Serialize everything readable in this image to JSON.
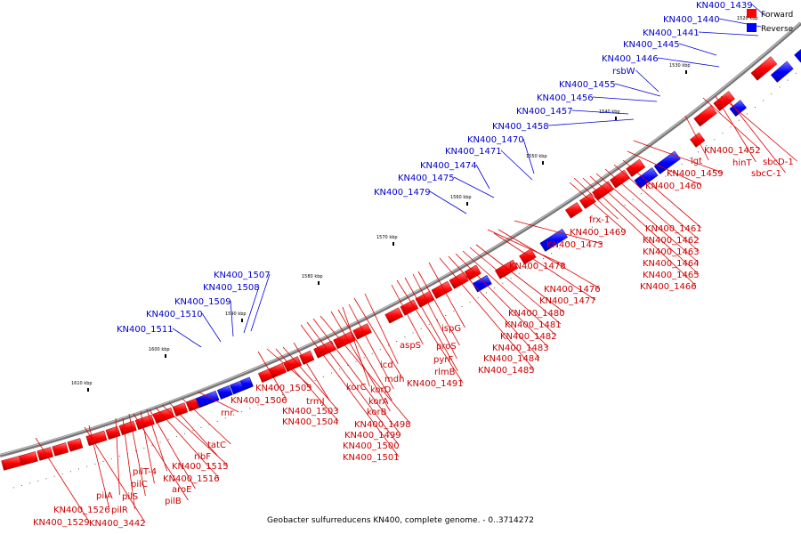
{
  "caption": "Geobacter sulfurreducens KN400, complete genome. - 0..3714272",
  "legend": {
    "forward": {
      "label": "Forward",
      "color": "#ff0000"
    },
    "reverse": {
      "label": "Reverse",
      "color": "#0000ff"
    }
  },
  "kbp_ticks": [
    "1520 kbp",
    "1530 kbp",
    "1540 kbp",
    "1550 kbp",
    "1560 kbp",
    "1570 kbp",
    "1580 kbp",
    "1590 kbp",
    "1600 kbp",
    "1610 kbp"
  ],
  "reverse_labels": [
    "KN400_1439",
    "KN400_1440",
    "KN400_1441",
    "KN400_1445",
    "KN400_1446",
    "rsbW",
    "KN400_1455",
    "KN400_1456",
    "KN400_1457",
    "KN400_1458",
    "KN400_1470",
    "KN400_1471",
    "KN400_1474",
    "KN400_1475",
    "KN400_1479",
    "KN400_1507",
    "KN400_1508",
    "KN400_1509",
    "KN400_1510",
    "KN400_1511"
  ],
  "forward_labels": [
    "lgt",
    "KN400_1452",
    "hinT",
    "sbcD-1",
    "sbcC-1",
    "KN400_1459",
    "KN400_1460",
    "frx-1",
    "KN400_1469",
    "KN400_1461",
    "KN400_1462",
    "KN400_1463",
    "KN400_1464",
    "KN400_1465",
    "KN400_1466",
    "KN400_1473",
    "KN400_1478",
    "KN400_1476",
    "KN400_1477",
    "KN400_1480",
    "KN400_1481",
    "KN400_1482",
    "KN400_1483",
    "KN400_1484",
    "KN400_1485",
    "ispG",
    "aspS",
    "proS",
    "pyrF",
    "rlmB",
    "icd",
    "mdh",
    "KN400_1491",
    "korC",
    "korD",
    "korA",
    "KN400_1505",
    "KN400_1506",
    "trmJ",
    "KN400_1503",
    "KN400_1504",
    "korB",
    "KN400_1498",
    "KN400_1499",
    "KN400_1500",
    "KN400_1501",
    "rnr",
    "tatC",
    "ribF",
    "KN400_1515",
    "pilT-4",
    "KN400_1516",
    "pilC",
    "aroE",
    "pilS",
    "pilB",
    "pilA",
    "pilR",
    "KN400_1526",
    "KN400_1529",
    "KN400_3442"
  ]
}
